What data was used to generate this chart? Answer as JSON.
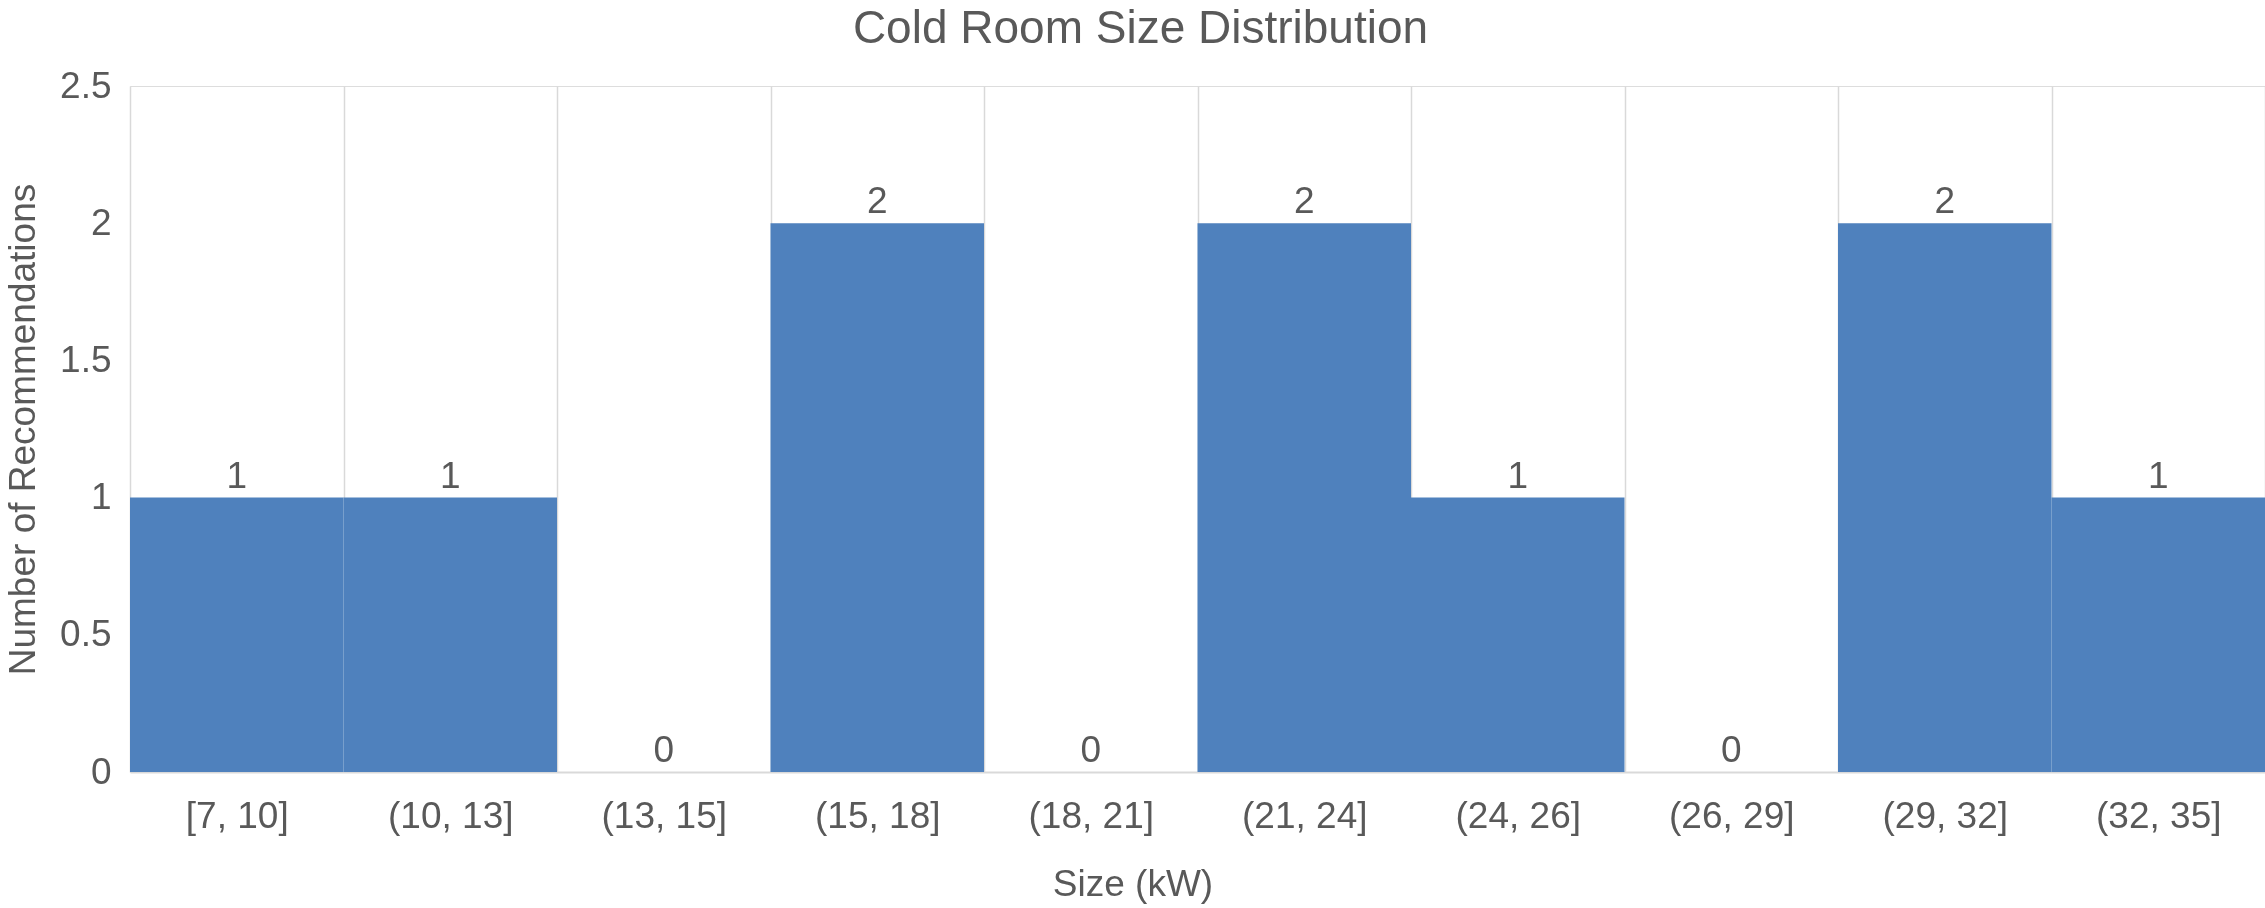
{
  "chart_data": {
    "type": "bar",
    "title": "Cold Room Size Distribution",
    "xlabel": "Size (kW)",
    "ylabel": "Number of Recommendations",
    "categories": [
      "[7, 10]",
      "(10, 13]",
      "(13, 15]",
      "(15, 18]",
      "(18, 21]",
      "(21, 24]",
      "(24, 26]",
      "(26, 29]",
      "(29, 32]",
      "(32, 35]"
    ],
    "values": [
      1,
      1,
      0,
      2,
      0,
      2,
      1,
      0,
      2,
      1
    ],
    "color": "#4f81bd",
    "ylim": [
      0,
      2.5
    ],
    "yticks": [
      0,
      0.5,
      1,
      1.5,
      2,
      2.5
    ],
    "grid": "x",
    "data_labels": true
  }
}
